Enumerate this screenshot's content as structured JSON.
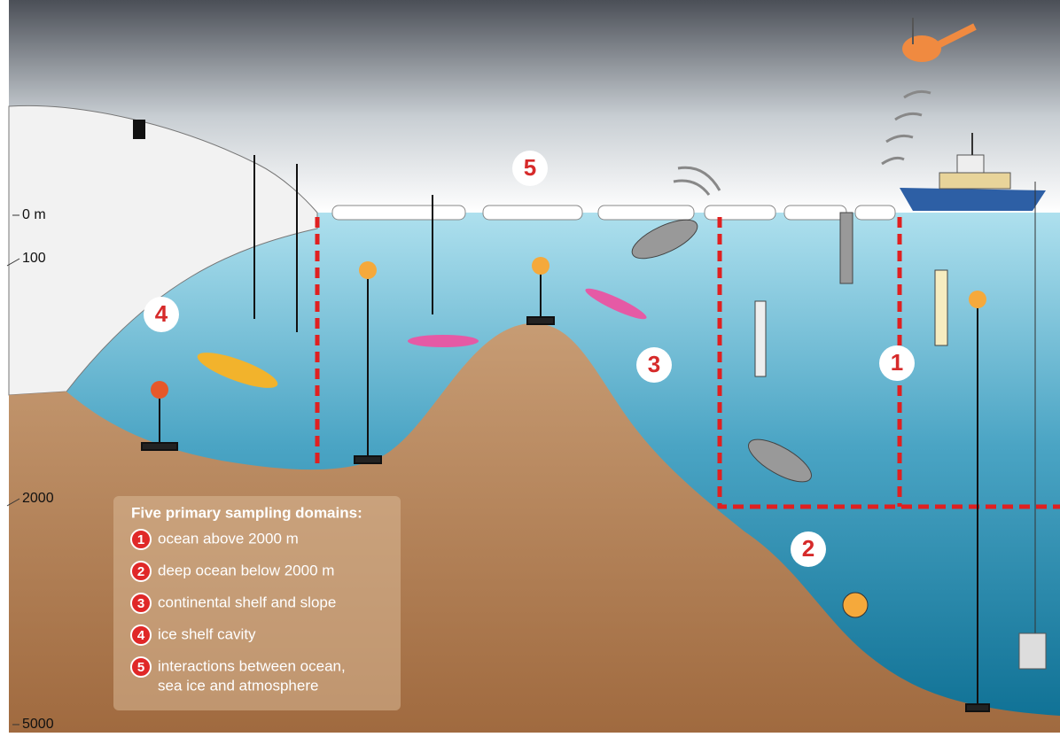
{
  "depth_labels": [
    "0 m",
    "100",
    "2000",
    "5000"
  ],
  "domain_markers": [
    "5",
    "4",
    "3",
    "1",
    "2"
  ],
  "legend": {
    "title": "Five primary sampling domains:",
    "items": [
      {
        "number": "1",
        "lines": [
          "ocean above 2000 m"
        ]
      },
      {
        "number": "2",
        "lines": [
          "deep ocean below 2000 m"
        ]
      },
      {
        "number": "3",
        "lines": [
          "continental shelf and slope"
        ]
      },
      {
        "number": "4",
        "lines": [
          "ice shelf cavity"
        ]
      },
      {
        "number": "5",
        "lines": [
          "interactions between ocean,",
          "sea ice and atmosphere"
        ]
      }
    ]
  }
}
